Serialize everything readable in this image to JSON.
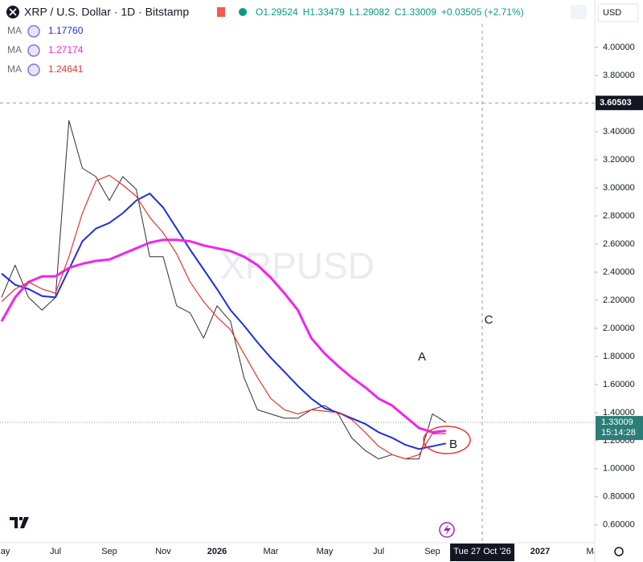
{
  "chart_data": {
    "type": "line",
    "title": "XRP / U.S. Dollar · 1D · Bitstamp",
    "ohlc": [
      "O1.29524",
      "H1.33479",
      "L1.29082",
      "C1.33009"
    ],
    "change": "+0.03505 (+2.71%)",
    "currency": "USD",
    "watermark": "XRPUSD",
    "annotations": [
      "A",
      "B",
      "C"
    ],
    "last_price": 1.33009,
    "countdown": "15:14:28",
    "crosshair_price": 3.60503,
    "crosshair_date": "Tue 27 Oct '26",
    "categories": [
      "May",
      null,
      null,
      null,
      "Jul",
      null,
      null,
      null,
      "Sep",
      null,
      null,
      null,
      "Nov",
      null,
      null,
      null,
      "2026",
      null,
      null,
      null,
      "Mar",
      null,
      null,
      null,
      "May",
      null,
      null,
      null,
      "Jul",
      null,
      null,
      null,
      "Sep",
      null,
      null,
      null,
      null,
      null,
      null,
      null,
      "2027",
      null,
      null,
      null,
      "Mar"
    ],
    "series": [
      {
        "color": "#2a2e39",
        "values": [
          2.22,
          2.45,
          2.22,
          2.13,
          2.22,
          3.48,
          3.14,
          3.08,
          2.91,
          3.08,
          2.99,
          2.51,
          2.51,
          2.16,
          2.11,
          1.93,
          2.16,
          2.05,
          1.65,
          1.42,
          1.39,
          1.36,
          1.36,
          1.42,
          1.45,
          1.39,
          1.22,
          1.13,
          1.07,
          1.1,
          1.07,
          1.07,
          1.39,
          1.33,
          null,
          null,
          null,
          null,
          null,
          null,
          null,
          null,
          null,
          null,
          null
        ]
      },
      {
        "name": "MA",
        "last_label": "1.17760",
        "color": "#1c2fdc",
        "values": [
          2.39,
          2.31,
          2.28,
          2.23,
          2.22,
          2.42,
          2.62,
          2.71,
          2.75,
          2.82,
          2.91,
          2.96,
          2.86,
          2.71,
          2.56,
          2.42,
          2.28,
          2.13,
          2.02,
          1.9,
          1.79,
          1.69,
          1.59,
          1.5,
          1.43,
          1.4,
          1.36,
          1.32,
          1.26,
          1.22,
          1.17,
          1.14,
          1.16,
          1.18,
          null,
          null,
          null,
          null,
          null,
          null,
          null,
          null,
          null,
          null,
          null
        ]
      },
      {
        "name": "MA",
        "last_label": "1.27174",
        "color": "#f024ee",
        "values": [
          2.05,
          2.22,
          2.33,
          2.37,
          2.37,
          2.43,
          2.46,
          2.48,
          2.49,
          2.53,
          2.57,
          2.61,
          2.63,
          2.63,
          2.62,
          2.59,
          2.57,
          2.55,
          2.51,
          2.45,
          2.36,
          2.25,
          2.13,
          1.93,
          1.82,
          1.73,
          1.65,
          1.58,
          1.5,
          1.45,
          1.37,
          1.29,
          1.26,
          1.27,
          null,
          null,
          null,
          null,
          null,
          null,
          null,
          null,
          null,
          null,
          null
        ]
      },
      {
        "name": "MA",
        "last_label": "1.24641",
        "color": "#e53530",
        "values": [
          2.19,
          2.28,
          2.33,
          2.28,
          2.25,
          2.51,
          2.82,
          3.05,
          3.09,
          3.02,
          2.94,
          2.79,
          2.68,
          2.53,
          2.33,
          2.19,
          2.08,
          1.99,
          1.82,
          1.65,
          1.5,
          1.42,
          1.39,
          1.42,
          1.41,
          1.4,
          1.35,
          1.26,
          1.16,
          1.1,
          1.07,
          1.1,
          1.25,
          1.25,
          null,
          null,
          null,
          null,
          null,
          null,
          null,
          null,
          null,
          null,
          null
        ]
      }
    ],
    "ylim": [
      0.473,
      4.338
    ],
    "yticks": [
      {
        "value": 0.6,
        "label": "0.60000"
      },
      {
        "value": 0.8,
        "label": "0.80000"
      },
      {
        "value": 1.0,
        "label": "1.00000"
      },
      {
        "value": 1.2,
        "label": "1.20000"
      },
      {
        "value": 1.4,
        "label": "1.40000"
      },
      {
        "value": 1.6,
        "label": "1.60000"
      },
      {
        "value": 1.8,
        "label": "1.80000"
      },
      {
        "value": 2.0,
        "label": "2.00000"
      },
      {
        "value": 2.2,
        "label": "2.20000"
      },
      {
        "value": 2.4,
        "label": "2.40000"
      },
      {
        "value": 2.6,
        "label": "2.60000"
      },
      {
        "value": 2.8,
        "label": "2.80000"
      },
      {
        "value": 3.0,
        "label": "3.00000"
      },
      {
        "value": 3.2,
        "label": "3.20000"
      },
      {
        "value": 3.4,
        "label": "3.40000"
      },
      {
        "value": 3.6,
        "label": "3.60000"
      },
      {
        "value": 3.8,
        "label": "3.80000"
      },
      {
        "value": 4.0,
        "label": "4.00000"
      }
    ]
  }
}
